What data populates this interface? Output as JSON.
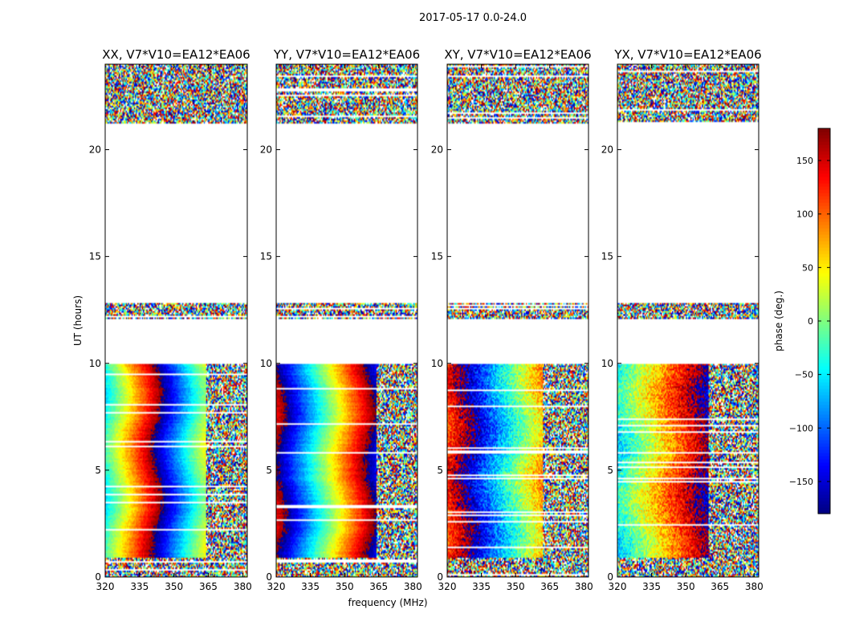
{
  "figure_title": "2017-05-17 0.0-24.0",
  "colorbar": {
    "label": "phase (deg.)",
    "ticks": [
      150,
      100,
      50,
      0,
      -50,
      -100,
      -150
    ],
    "tick_labels": [
      "150",
      "100",
      "50",
      "0",
      "−50",
      "−100",
      "−150"
    ],
    "range": [
      -180,
      180
    ],
    "colormap": "jet"
  },
  "chart_data": [
    {
      "type": "heatmap",
      "title": "XX, V7*V10=EA12*EA06",
      "xlabel": "",
      "ylabel": "UT (hours)",
      "xlim": [
        320,
        382
      ],
      "ylim": [
        0,
        24
      ],
      "xticks": [
        320,
        335,
        350,
        365,
        380
      ],
      "yticks": [
        0,
        5,
        10,
        15,
        20
      ],
      "value": "phase (deg.)",
      "phase_slope_deg_per_MHz": 9.7,
      "phase_at_320MHz": -40,
      "coherent_band_MHz": [
        320,
        364
      ],
      "data_gaps_hours": [
        [
          9.95,
          12.1
        ],
        [
          12.85,
          21.25
        ]
      ]
    },
    {
      "type": "heatmap",
      "title": "YY, V7*V10=EA12*EA06",
      "xlabel": "frequency (MHz)",
      "ylabel": "",
      "xlim": [
        320,
        382
      ],
      "ylim": [
        0,
        24
      ],
      "xticks": [
        320,
        335,
        350,
        365,
        380
      ],
      "yticks": [
        0,
        5,
        10,
        15,
        20
      ],
      "value": "phase (deg.)",
      "phase_slope_deg_per_MHz": 9.2,
      "phase_at_320MHz": 160,
      "coherent_band_MHz": [
        320,
        364
      ],
      "data_gaps_hours": [
        [
          9.95,
          12.1
        ],
        [
          12.85,
          21.25
        ]
      ]
    },
    {
      "type": "heatmap",
      "title": "XY, V7*V10=EA12*EA06",
      "xlabel": "",
      "ylabel": "",
      "xlim": [
        320,
        382
      ],
      "ylim": [
        0,
        24
      ],
      "xticks": [
        320,
        335,
        350,
        365,
        380
      ],
      "yticks": [
        0,
        5,
        10,
        15,
        20
      ],
      "value": "phase (deg.)",
      "phase_slope_deg_per_MHz": 7.5,
      "phase_at_320MHz": 120,
      "coherent_band_MHz": [
        320,
        362
      ],
      "data_gaps_hours": [
        [
          9.95,
          12.1
        ],
        [
          12.85,
          21.25
        ]
      ]
    },
    {
      "type": "heatmap",
      "title": "YX, V7*V10=EA12*EA06",
      "xlabel": "",
      "ylabel": "",
      "xlim": [
        320,
        382
      ],
      "ylim": [
        0,
        24
      ],
      "xticks": [
        320,
        335,
        350,
        365,
        380
      ],
      "yticks": [
        0,
        5,
        10,
        15,
        20
      ],
      "value": "phase (deg.)",
      "phase_slope_deg_per_MHz": 6.0,
      "phase_at_320MHz": -45,
      "coherent_band_MHz": [
        320,
        360
      ],
      "data_gaps_hours": [
        [
          9.95,
          12.1
        ],
        [
          12.85,
          21.25
        ]
      ]
    }
  ]
}
